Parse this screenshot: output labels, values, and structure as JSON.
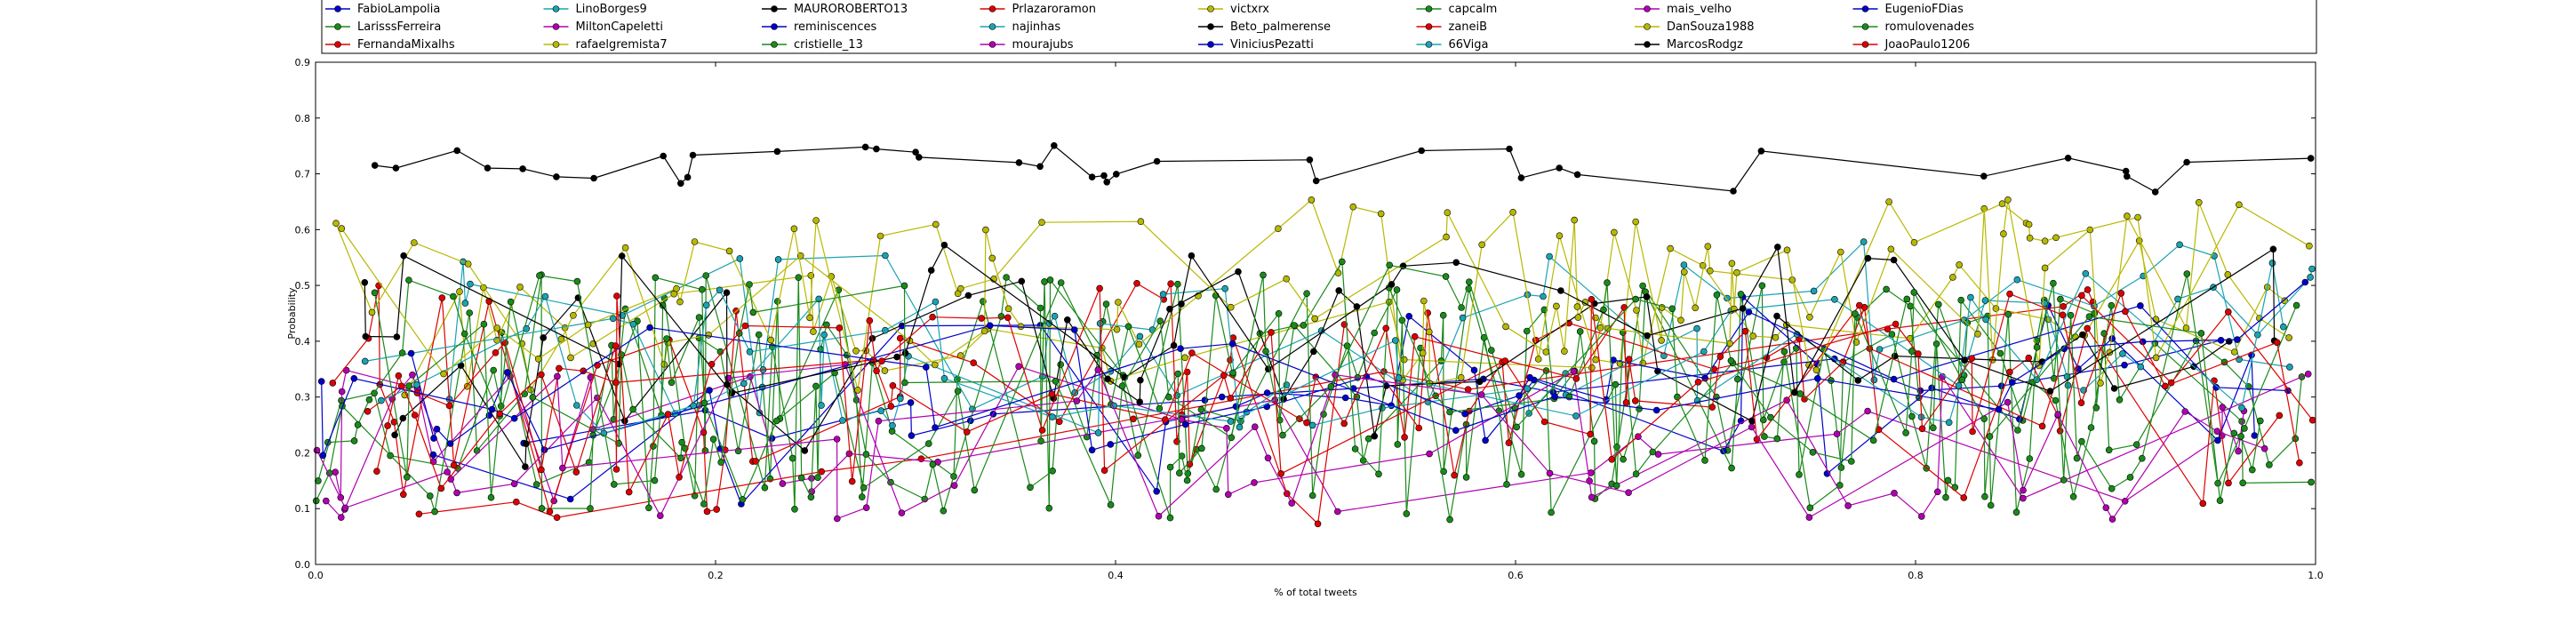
{
  "chart_data": {
    "type": "line",
    "xlabel": "% of total tweets",
    "ylabel": "Probability",
    "xlim": [
      0.0,
      1.0
    ],
    "ylim": [
      0.0,
      0.9
    ],
    "xticks": [
      "0.0",
      "0.2",
      "0.4",
      "0.6",
      "0.8",
      "1.0"
    ],
    "yticks": [
      "0.0",
      "0.1",
      "0.2",
      "0.3",
      "0.4",
      "0.5",
      "0.6",
      "0.7",
      "0.8",
      "0.9"
    ],
    "grid": false,
    "legend_position": "top",
    "legend_columns": 10,
    "series": [
      {
        "name": "FabioLampolia",
        "color": "#0000cc",
        "n": 17,
        "seed": 11,
        "base": 0.22,
        "amp": 0.04,
        "trend": 0.16
      },
      {
        "name": "LarisssFerreira",
        "color": "#1a8a1a",
        "n": 95,
        "seed": 12,
        "base": 0.3,
        "amp": 0.2,
        "trend": 0.02
      },
      {
        "name": "FernandaMixalhs",
        "color": "#dd0000",
        "n": 12,
        "seed": 13,
        "base": 0.05,
        "amp": 0.03,
        "trend": 0.5
      },
      {
        "name": "LinoBorges9",
        "color": "#1aa3b3",
        "n": 40,
        "seed": 14,
        "base": 0.4,
        "amp": 0.14,
        "trend": 0.05
      },
      {
        "name": "MiltonCapeletti",
        "color": "#b000b0",
        "n": 28,
        "seed": 15,
        "base": 0.24,
        "amp": 0.12,
        "trend": -0.08
      },
      {
        "name": "rafaelgremista7",
        "color": "#b8b800",
        "n": 45,
        "seed": 16,
        "base": 0.4,
        "amp": 0.14,
        "trend": 0.1
      },
      {
        "name": "MAUROROBERTO13",
        "color": "#000000",
        "n": 40,
        "seed": 17,
        "base": 0.72,
        "amp": 0.04,
        "trend": -0.02
      },
      {
        "name": "reminiscences",
        "color": "#0000cc",
        "n": 30,
        "seed": 18,
        "base": 0.24,
        "amp": 0.18,
        "trend": 0.1
      },
      {
        "name": "cristielle_13",
        "color": "#1a8a1a",
        "n": 110,
        "seed": 19,
        "base": 0.3,
        "amp": 0.22,
        "trend": 0.0
      },
      {
        "name": "Prlazaroramon",
        "color": "#dd0000",
        "n": 60,
        "seed": 20,
        "base": 0.28,
        "amp": 0.22,
        "trend": 0.02
      },
      {
        "name": "najinhas",
        "color": "#1aa3b3",
        "n": 45,
        "seed": 21,
        "base": 0.36,
        "amp": 0.14,
        "trend": 0.04
      },
      {
        "name": "mourajubs",
        "color": "#b000b0",
        "n": 30,
        "seed": 22,
        "base": 0.22,
        "amp": 0.14,
        "trend": 0.0
      },
      {
        "name": "victxrx",
        "color": "#b8b800",
        "n": 70,
        "seed": 23,
        "base": 0.45,
        "amp": 0.18,
        "trend": 0.05
      },
      {
        "name": "Beto_palmerense",
        "color": "#000000",
        "n": 40,
        "seed": 24,
        "base": 0.32,
        "amp": 0.16,
        "trend": 0.1
      },
      {
        "name": "ViniciusPezatti",
        "color": "#0000cc",
        "n": 25,
        "seed": 25,
        "base": 0.28,
        "amp": 0.14,
        "trend": 0.12
      },
      {
        "name": "capcalm",
        "color": "#1a8a1a",
        "n": 70,
        "seed": 26,
        "base": 0.34,
        "amp": 0.22,
        "trend": -0.02
      },
      {
        "name": "zaneiB",
        "color": "#dd0000",
        "n": 40,
        "seed": 27,
        "base": 0.26,
        "amp": 0.14,
        "trend": 0.1
      },
      {
        "name": "66Viga",
        "color": "#1aa3b3",
        "n": 30,
        "seed": 28,
        "base": 0.36,
        "amp": 0.14,
        "trend": 0.06
      },
      {
        "name": "mais_velho",
        "color": "#b000b0",
        "n": 30,
        "seed": 29,
        "base": 0.22,
        "amp": 0.14,
        "trend": 0.0
      },
      {
        "name": "DanSouza1988",
        "color": "#b8b800",
        "n": 55,
        "seed": 30,
        "base": 0.46,
        "amp": 0.16,
        "trend": 0.04
      },
      {
        "name": "MarcosRodgz",
        "color": "#000000",
        "n": 30,
        "seed": 31,
        "base": 0.4,
        "amp": 0.16,
        "trend": 0.06
      },
      {
        "name": "EugenioFDias",
        "color": "#0000cc",
        "n": 20,
        "seed": 32,
        "base": 0.3,
        "amp": 0.12,
        "trend": 0.1
      },
      {
        "name": "romulovenades",
        "color": "#1a8a1a",
        "n": 60,
        "seed": 33,
        "base": 0.32,
        "amp": 0.22,
        "trend": 0.0
      },
      {
        "name": "JoaoPaulo1206",
        "color": "#dd0000",
        "n": 50,
        "seed": 34,
        "base": 0.3,
        "amp": 0.18,
        "trend": 0.06
      }
    ]
  }
}
